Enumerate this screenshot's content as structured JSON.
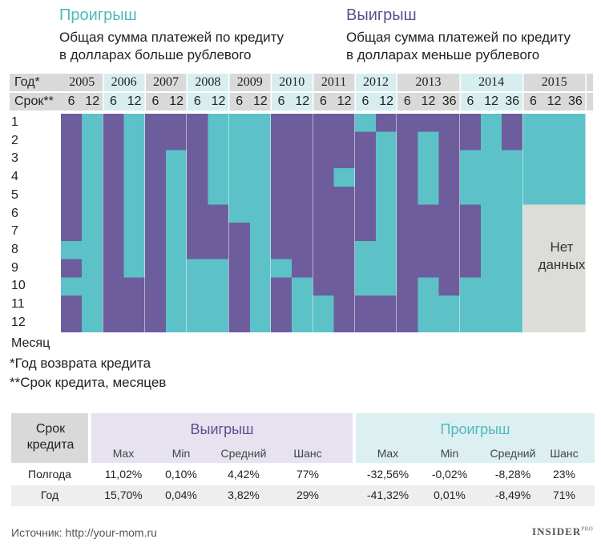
{
  "colors": {
    "win": "#6e5d9c",
    "loss": "#5cc2c8",
    "nodata": "#dcdcd8",
    "header_a": "#d9d9d9",
    "header_b": "#d7eef0",
    "win_bg": "#e6e2ef",
    "loss_bg": "#dceff1"
  },
  "legend": {
    "loss_title": "Проигрыш",
    "loss_desc_1": "Общая сумма платежей по кредиту",
    "loss_desc_2": "в долларах больше рублевого",
    "win_title": "Выигрыш",
    "win_desc_1": "Общая сумма платежей по кредиту",
    "win_desc_2": "в долларах меньше рублевого"
  },
  "header": {
    "year_label": "Год*",
    "term_label": "Срок**"
  },
  "months_axis": {
    "months": [
      "1",
      "2",
      "3",
      "4",
      "5",
      "6",
      "7",
      "8",
      "9",
      "10",
      "11",
      "12"
    ],
    "label": "Месяц"
  },
  "nodata_label_1": "Нет",
  "nodata_label_2": "данных",
  "chart_data": {
    "type": "heatmap",
    "value_legend": {
      "W": "Выигрыш",
      "L": "Проигрыш"
    },
    "groups": [
      {
        "year": "2005",
        "columns": [
          {
            "term": "6",
            "months": [
              "W",
              "W",
              "W",
              "W",
              "W",
              "W",
              "W",
              "L",
              "W",
              "L",
              "W",
              "W"
            ]
          },
          {
            "term": "12",
            "months": [
              "L",
              "L",
              "L",
              "L",
              "L",
              "L",
              "L",
              "L",
              "L",
              "L",
              "L",
              "L"
            ]
          }
        ]
      },
      {
        "year": "2006",
        "columns": [
          {
            "term": "6",
            "months": [
              "W",
              "W",
              "W",
              "W",
              "W",
              "W",
              "W",
              "W",
              "W",
              "W",
              "W",
              "W"
            ]
          },
          {
            "term": "12",
            "months": [
              "L",
              "L",
              "L",
              "L",
              "L",
              "L",
              "L",
              "L",
              "L",
              "W",
              "W",
              "W"
            ]
          }
        ]
      },
      {
        "year": "2007",
        "columns": [
          {
            "term": "6",
            "months": [
              "W",
              "W",
              "W",
              "W",
              "W",
              "W",
              "W",
              "W",
              "W",
              "W",
              "W",
              "W"
            ]
          },
          {
            "term": "12",
            "months": [
              "W",
              "W",
              "L",
              "L",
              "L",
              "L",
              "L",
              "L",
              "L",
              "L",
              "L",
              "L"
            ]
          }
        ]
      },
      {
        "year": "2008",
        "columns": [
          {
            "term": "6",
            "months": [
              "W",
              "W",
              "W",
              "W",
              "W",
              "W",
              "W",
              "W",
              "L",
              "L",
              "L",
              "L"
            ]
          },
          {
            "term": "12",
            "months": [
              "L",
              "L",
              "L",
              "L",
              "L",
              "W",
              "W",
              "W",
              "L",
              "L",
              "L",
              "L"
            ]
          }
        ]
      },
      {
        "year": "2009",
        "columns": [
          {
            "term": "6",
            "months": [
              "L",
              "L",
              "L",
              "L",
              "L",
              "L",
              "W",
              "W",
              "W",
              "W",
              "W",
              "W"
            ]
          },
          {
            "term": "12",
            "months": [
              "L",
              "L",
              "L",
              "L",
              "L",
              "L",
              "L",
              "L",
              "L",
              "L",
              "L",
              "L"
            ]
          }
        ]
      },
      {
        "year": "2010",
        "columns": [
          {
            "term": "6",
            "months": [
              "W",
              "W",
              "W",
              "W",
              "W",
              "W",
              "W",
              "W",
              "L",
              "W",
              "W",
              "W"
            ]
          },
          {
            "term": "12",
            "months": [
              "W",
              "W",
              "W",
              "W",
              "W",
              "W",
              "W",
              "W",
              "W",
              "L",
              "L",
              "L"
            ]
          }
        ]
      },
      {
        "year": "2011",
        "columns": [
          {
            "term": "6",
            "months": [
              "W",
              "W",
              "W",
              "W",
              "W",
              "W",
              "W",
              "W",
              "W",
              "W",
              "L",
              "L"
            ]
          },
          {
            "term": "12",
            "months": [
              "W",
              "W",
              "W",
              "L",
              "W",
              "W",
              "W",
              "W",
              "W",
              "W",
              "W",
              "W"
            ]
          }
        ]
      },
      {
        "year": "2012",
        "columns": [
          {
            "term": "6",
            "months": [
              "L",
              "W",
              "W",
              "W",
              "W",
              "W",
              "W",
              "L",
              "L",
              "L",
              "W",
              "W"
            ]
          },
          {
            "term": "12",
            "months": [
              "W",
              "L",
              "L",
              "L",
              "L",
              "L",
              "L",
              "L",
              "L",
              "L",
              "W",
              "W"
            ]
          }
        ]
      },
      {
        "year": "2013",
        "columns": [
          {
            "term": "6",
            "months": [
              "W",
              "W",
              "W",
              "W",
              "W",
              "W",
              "W",
              "W",
              "W",
              "W",
              "W",
              "W"
            ]
          },
          {
            "term": "12",
            "months": [
              "W",
              "L",
              "L",
              "L",
              "L",
              "W",
              "W",
              "W",
              "W",
              "L",
              "L",
              "L"
            ]
          },
          {
            "term": "36",
            "months": [
              "W",
              "W",
              "W",
              "W",
              "W",
              "W",
              "W",
              "W",
              "W",
              "W",
              "L",
              "L"
            ]
          }
        ]
      },
      {
        "year": "2014",
        "columns": [
          {
            "term": "6",
            "months": [
              "W",
              "W",
              "L",
              "L",
              "L",
              "W",
              "W",
              "W",
              "W",
              "L",
              "L",
              "L"
            ]
          },
          {
            "term": "12",
            "months": [
              "L",
              "L",
              "L",
              "L",
              "L",
              "L",
              "L",
              "L",
              "L",
              "L",
              "L",
              "L"
            ]
          },
          {
            "term": "36",
            "months": [
              "W",
              "W",
              "L",
              "L",
              "L",
              "L",
              "L",
              "L",
              "L",
              "L",
              "L",
              "L"
            ]
          }
        ]
      },
      {
        "year": "2015",
        "columns": [
          {
            "term": "6",
            "months": [
              "L",
              "L",
              "L",
              "L",
              "L",
              null,
              null,
              null,
              null,
              null,
              null,
              null
            ]
          },
          {
            "term": "12",
            "months": [
              "L",
              "L",
              "L",
              "L",
              "L",
              null,
              null,
              null,
              null,
              null,
              null,
              null
            ]
          },
          {
            "term": "36",
            "months": [
              "L",
              "L",
              "L",
              "L",
              "L",
              null,
              null,
              null,
              null,
              null,
              null,
              null
            ]
          }
        ]
      }
    ]
  },
  "footnotes": {
    "year_note": "*Год возврата кредита",
    "term_note": "**Срок кредита, месяцев"
  },
  "stats": {
    "term_header": "Срок кредита",
    "win_header": "Выигрыш",
    "loss_header": "Проигрыш",
    "columns": [
      "Max",
      "Min",
      "Средний",
      "Шанс",
      "Max",
      "Min",
      "Средний",
      "Шанс"
    ],
    "rows": [
      {
        "label": "Полгода",
        "values": [
          "11,02%",
          "0,10%",
          "4,42%",
          "77%",
          "-32,56%",
          "-0,02%",
          "-8,28%",
          "23%"
        ]
      },
      {
        "label": "Год",
        "values": [
          "15,70%",
          "0,04%",
          "3,82%",
          "29%",
          "-41,32%",
          "0,01%",
          "-8,49%",
          "71%"
        ]
      }
    ]
  },
  "source": "Источник: http://your-mom.ru",
  "brand": {
    "main": "INSIDER",
    "suffix": "PRO"
  }
}
